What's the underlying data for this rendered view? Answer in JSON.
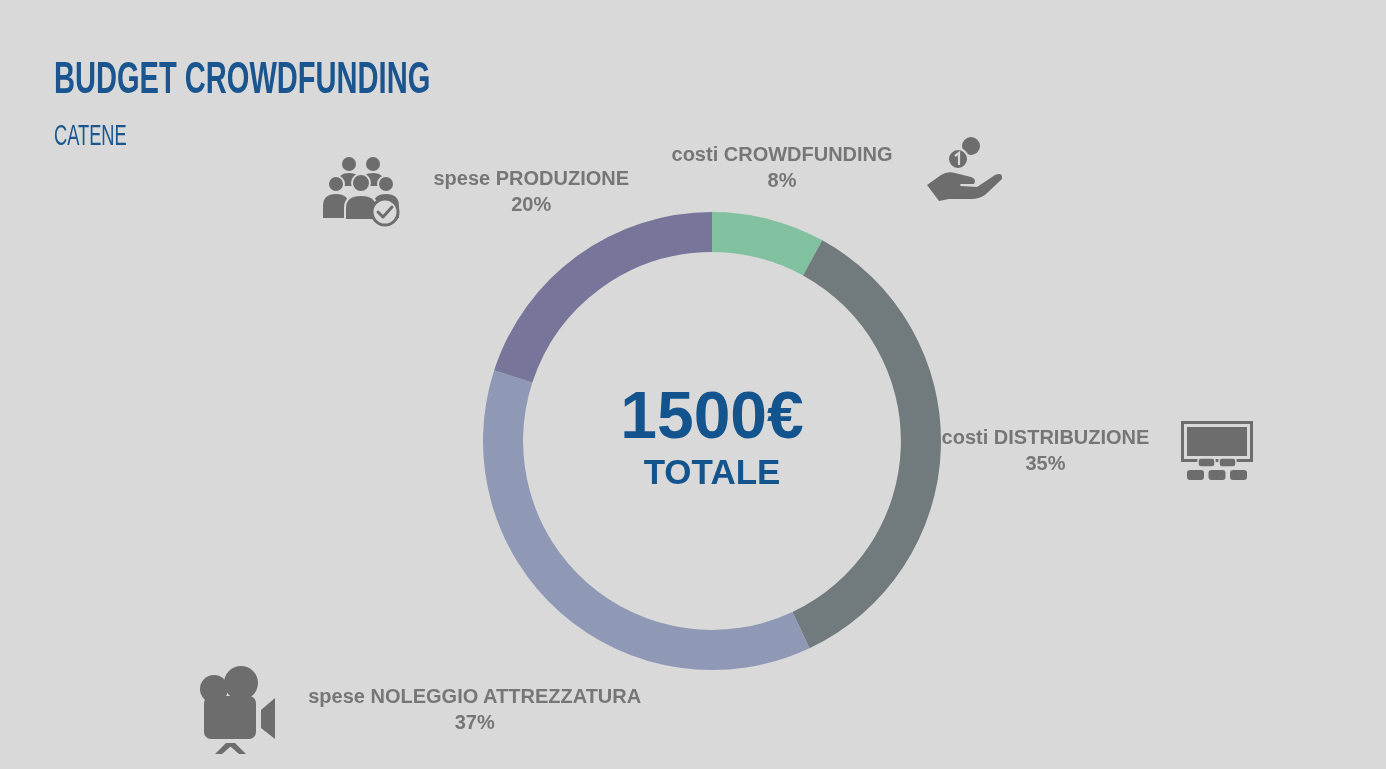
{
  "chart_data": {
    "type": "donut",
    "title": "BUDGET CROWDFUNDING",
    "subtitle": "CATENE",
    "categories": [
      "costi CROWDFUNDING",
      "costi DISTRIBUZIONE",
      "spese NOLEGGIO ATTREZZATURA",
      "spese PRODUZIONE"
    ],
    "values": [
      8,
      35,
      37,
      20
    ],
    "colors": [
      "#82c1a0",
      "#717b7d",
      "#8f98b5",
      "#777599"
    ],
    "value_labels": [
      "8%",
      "35%",
      "37%",
      "20%"
    ],
    "annotations": [
      "1500€",
      "TOTALE"
    ]
  }
}
